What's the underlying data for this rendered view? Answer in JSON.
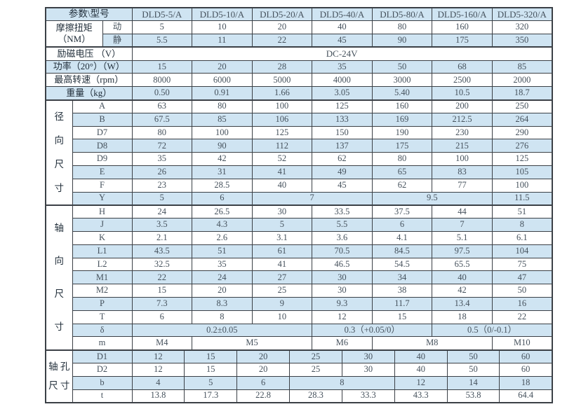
{
  "page": {
    "background": "#ffffff"
  },
  "table": {
    "colors": {
      "stripe_blue": "#cfe4f2",
      "row_white": "#ffffff",
      "border": "#3b4046",
      "label_text": "#1f2c38",
      "value_text": "#46525d"
    },
    "columns": {
      "label_widths": [
        38,
        43,
        42
      ],
      "data_area_width": 599,
      "subcols": 56
    },
    "section_labels": {
      "radial": "径向尺寸",
      "axial": "轴向尺寸",
      "shaft_hole": "轴孔尺寸"
    },
    "models": [
      "DLD5-5/A",
      "DLD5-10/A",
      "DLD5-20/A",
      "DLD5-40/A",
      "DLD5-80/A",
      "DLD5-160/A",
      "DLD5-320/A"
    ],
    "rows": [
      {
        "cells": [
          {
            "t": "参数\\型号",
            "cs": 3,
            "k": "corner"
          },
          {
            "t": "DLD5-5/A",
            "cs": 8,
            "k": "model"
          },
          {
            "t": "DLD5-10/A",
            "cs": 8,
            "k": "model"
          },
          {
            "t": "DLD5-20/A",
            "cs": 8,
            "k": "model"
          },
          {
            "t": "DLD5-40/A",
            "cs": 8,
            "k": "model"
          },
          {
            "t": "DLD5-80/A",
            "cs": 8,
            "k": "model"
          },
          {
            "t": "DLD5-160/A",
            "cs": 8,
            "k": "model"
          },
          {
            "t": "DLD5-320/A",
            "cs": 8,
            "k": "model"
          }
        ]
      },
      {
        "cells": [
          {
            "t": "摩擦扭矩\n（NM）",
            "cs": 2,
            "rs": 2,
            "k": "head",
            "w": true
          },
          {
            "t": "动",
            "cs": 1,
            "k": "sub"
          },
          {
            "t": "5",
            "cs": 8
          },
          {
            "t": "10",
            "cs": 8
          },
          {
            "t": "20",
            "cs": 8
          },
          {
            "t": "40",
            "cs": 8
          },
          {
            "t": "80",
            "cs": 8
          },
          {
            "t": "160",
            "cs": 8
          },
          {
            "t": "320",
            "cs": 8
          }
        ]
      },
      {
        "sep": true,
        "cells": [
          {
            "t": "静",
            "cs": 1,
            "k": "sub"
          },
          {
            "t": "5.5",
            "cs": 8
          },
          {
            "t": "11",
            "cs": 8
          },
          {
            "t": "22",
            "cs": 8
          },
          {
            "t": "45",
            "cs": 8
          },
          {
            "t": "90",
            "cs": 8
          },
          {
            "t": "175",
            "cs": 8
          },
          {
            "t": "350",
            "cs": 8
          }
        ]
      },
      {
        "cells": [
          {
            "t": "励磁电压 （V）",
            "cs": 3,
            "k": "head"
          },
          {
            "t": "DC-24V",
            "cs": 56,
            "k": "model"
          }
        ]
      },
      {
        "cells": [
          {
            "t": "功率（20°）（W）",
            "cs": 3,
            "k": "head"
          },
          {
            "t": "15",
            "cs": 8
          },
          {
            "t": "20",
            "cs": 8
          },
          {
            "t": "28",
            "cs": 8
          },
          {
            "t": "35",
            "cs": 8
          },
          {
            "t": "50",
            "cs": 8
          },
          {
            "t": "68",
            "cs": 8
          },
          {
            "t": "85",
            "cs": 8
          }
        ]
      },
      {
        "cells": [
          {
            "t": "最高转速（rpm）",
            "cs": 3,
            "k": "head"
          },
          {
            "t": "8000",
            "cs": 8
          },
          {
            "t": "6000",
            "cs": 8
          },
          {
            "t": "5000",
            "cs": 8
          },
          {
            "t": "4000",
            "cs": 8
          },
          {
            "t": "3000",
            "cs": 8
          },
          {
            "t": "2500",
            "cs": 8
          },
          {
            "t": "2000",
            "cs": 8
          }
        ]
      },
      {
        "sep": true,
        "cells": [
          {
            "t": "重量（kg）",
            "cs": 3,
            "k": "head"
          },
          {
            "t": "0.50",
            "cs": 8
          },
          {
            "t": "0.91",
            "cs": 8
          },
          {
            "t": "1.66",
            "cs": 8
          },
          {
            "t": "3.05",
            "cs": 8
          },
          {
            "t": "5.40",
            "cs": 8
          },
          {
            "t": "10.5",
            "cs": 8
          },
          {
            "t": "18.7",
            "cs": 8
          }
        ]
      },
      {
        "cells": [
          {
            "t": "径\n向\n尺\n寸",
            "cs": 1,
            "rs": 8,
            "k": "vl8",
            "w": true
          },
          {
            "t": "A",
            "cs": 2,
            "k": "sub"
          },
          {
            "t": "63",
            "cs": 8
          },
          {
            "t": "80",
            "cs": 8
          },
          {
            "t": "100",
            "cs": 8
          },
          {
            "t": "125",
            "cs": 8
          },
          {
            "t": "160",
            "cs": 8
          },
          {
            "t": "200",
            "cs": 8
          },
          {
            "t": "250",
            "cs": 8
          }
        ]
      },
      {
        "cells": [
          {
            "t": "B",
            "cs": 2,
            "k": "sub"
          },
          {
            "t": "67.5",
            "cs": 8
          },
          {
            "t": "85",
            "cs": 8
          },
          {
            "t": "106",
            "cs": 8
          },
          {
            "t": "133",
            "cs": 8
          },
          {
            "t": "169",
            "cs": 8
          },
          {
            "t": "212.5",
            "cs": 8
          },
          {
            "t": "264",
            "cs": 8
          }
        ]
      },
      {
        "cells": [
          {
            "t": "D7",
            "cs": 2,
            "k": "sub"
          },
          {
            "t": "80",
            "cs": 8
          },
          {
            "t": "100",
            "cs": 8
          },
          {
            "t": "125",
            "cs": 8
          },
          {
            "t": "150",
            "cs": 8
          },
          {
            "t": "190",
            "cs": 8
          },
          {
            "t": "230",
            "cs": 8
          },
          {
            "t": "290",
            "cs": 8
          }
        ]
      },
      {
        "cells": [
          {
            "t": "D8",
            "cs": 2,
            "k": "sub"
          },
          {
            "t": "72",
            "cs": 8
          },
          {
            "t": "90",
            "cs": 8
          },
          {
            "t": "112",
            "cs": 8
          },
          {
            "t": "137",
            "cs": 8
          },
          {
            "t": "175",
            "cs": 8
          },
          {
            "t": "215",
            "cs": 8
          },
          {
            "t": "276",
            "cs": 8
          }
        ]
      },
      {
        "cells": [
          {
            "t": "D9",
            "cs": 2,
            "k": "sub"
          },
          {
            "t": "35",
            "cs": 8
          },
          {
            "t": "42",
            "cs": 8
          },
          {
            "t": "52",
            "cs": 8
          },
          {
            "t": "62",
            "cs": 8
          },
          {
            "t": "80",
            "cs": 8
          },
          {
            "t": "100",
            "cs": 8
          },
          {
            "t": "125",
            "cs": 8
          }
        ]
      },
      {
        "cells": [
          {
            "t": "E",
            "cs": 2,
            "k": "sub"
          },
          {
            "t": "26",
            "cs": 8
          },
          {
            "t": "31",
            "cs": 8
          },
          {
            "t": "41",
            "cs": 8
          },
          {
            "t": "49",
            "cs": 8
          },
          {
            "t": "65",
            "cs": 8
          },
          {
            "t": "83",
            "cs": 8
          },
          {
            "t": "105",
            "cs": 8
          }
        ]
      },
      {
        "cells": [
          {
            "t": "F",
            "cs": 2,
            "k": "sub"
          },
          {
            "t": "23",
            "cs": 8
          },
          {
            "t": "28.5",
            "cs": 8
          },
          {
            "t": "40",
            "cs": 8
          },
          {
            "t": "45",
            "cs": 8
          },
          {
            "t": "62",
            "cs": 8
          },
          {
            "t": "77",
            "cs": 8
          },
          {
            "t": "100",
            "cs": 8
          }
        ]
      },
      {
        "sep": true,
        "cells": [
          {
            "t": "Y",
            "cs": 2,
            "k": "sub"
          },
          {
            "t": "5",
            "cs": 8
          },
          {
            "t": "6",
            "cs": 8
          },
          {
            "t": "7",
            "cs": 16
          },
          {
            "t": "9.5",
            "cs": 16
          },
          {
            "t": "11.5",
            "cs": 8
          }
        ]
      },
      {
        "cells": [
          {
            "t": "轴\n向\n尺\n寸",
            "cs": 1,
            "rs": 11,
            "k": "vl11",
            "w": true
          },
          {
            "t": "H",
            "cs": 2,
            "k": "sub"
          },
          {
            "t": "24",
            "cs": 8
          },
          {
            "t": "26.5",
            "cs": 8
          },
          {
            "t": "30",
            "cs": 8
          },
          {
            "t": "33.5",
            "cs": 8
          },
          {
            "t": "37.5",
            "cs": 8
          },
          {
            "t": "44",
            "cs": 8
          },
          {
            "t": "51",
            "cs": 8
          }
        ]
      },
      {
        "cells": [
          {
            "t": "J",
            "cs": 2,
            "k": "sub"
          },
          {
            "t": "3.5",
            "cs": 8
          },
          {
            "t": "4.3",
            "cs": 8
          },
          {
            "t": "5",
            "cs": 8
          },
          {
            "t": "5.5",
            "cs": 8
          },
          {
            "t": "6",
            "cs": 8
          },
          {
            "t": "7",
            "cs": 8
          },
          {
            "t": "8",
            "cs": 8
          }
        ]
      },
      {
        "cells": [
          {
            "t": "K",
            "cs": 2,
            "k": "sub"
          },
          {
            "t": "2.1",
            "cs": 8
          },
          {
            "t": "2.6",
            "cs": 8
          },
          {
            "t": "3.1",
            "cs": 8
          },
          {
            "t": "3.6",
            "cs": 8
          },
          {
            "t": "4.1",
            "cs": 8
          },
          {
            "t": "5.1",
            "cs": 8
          },
          {
            "t": "6.1",
            "cs": 8
          }
        ]
      },
      {
        "cells": [
          {
            "t": "L1",
            "cs": 2,
            "k": "sub"
          },
          {
            "t": "43.5",
            "cs": 8
          },
          {
            "t": "51",
            "cs": 8
          },
          {
            "t": "61",
            "cs": 8
          },
          {
            "t": "70.5",
            "cs": 8
          },
          {
            "t": "84.5",
            "cs": 8
          },
          {
            "t": "97.5",
            "cs": 8
          },
          {
            "t": "104",
            "cs": 8
          }
        ]
      },
      {
        "cells": [
          {
            "t": "L2",
            "cs": 2,
            "k": "sub"
          },
          {
            "t": "32.5",
            "cs": 8
          },
          {
            "t": "35",
            "cs": 8
          },
          {
            "t": "41",
            "cs": 8
          },
          {
            "t": "46.5",
            "cs": 8
          },
          {
            "t": "54.5",
            "cs": 8
          },
          {
            "t": "65.5",
            "cs": 8
          },
          {
            "t": "75",
            "cs": 8
          }
        ]
      },
      {
        "cells": [
          {
            "t": "M1",
            "cs": 2,
            "k": "sub"
          },
          {
            "t": "22",
            "cs": 8
          },
          {
            "t": "24",
            "cs": 8
          },
          {
            "t": "27",
            "cs": 8
          },
          {
            "t": "30",
            "cs": 8
          },
          {
            "t": "34",
            "cs": 8
          },
          {
            "t": "40",
            "cs": 8
          },
          {
            "t": "47",
            "cs": 8
          }
        ]
      },
      {
        "cells": [
          {
            "t": "M2",
            "cs": 2,
            "k": "sub"
          },
          {
            "t": "15",
            "cs": 8
          },
          {
            "t": "20",
            "cs": 8
          },
          {
            "t": "25",
            "cs": 8
          },
          {
            "t": "30",
            "cs": 8
          },
          {
            "t": "38",
            "cs": 8
          },
          {
            "t": "42",
            "cs": 8
          },
          {
            "t": "50",
            "cs": 8
          }
        ]
      },
      {
        "cells": [
          {
            "t": "P",
            "cs": 2,
            "k": "sub"
          },
          {
            "t": "7.3",
            "cs": 8
          },
          {
            "t": "8.3",
            "cs": 8
          },
          {
            "t": "9",
            "cs": 8
          },
          {
            "t": "9.3",
            "cs": 8
          },
          {
            "t": "11.7",
            "cs": 8
          },
          {
            "t": "13.4",
            "cs": 8
          },
          {
            "t": "16",
            "cs": 8
          }
        ]
      },
      {
        "cells": [
          {
            "t": "T",
            "cs": 2,
            "k": "sub"
          },
          {
            "t": "6",
            "cs": 8
          },
          {
            "t": "8",
            "cs": 8
          },
          {
            "t": "10",
            "cs": 8
          },
          {
            "t": "12",
            "cs": 8
          },
          {
            "t": "15",
            "cs": 8
          },
          {
            "t": "18",
            "cs": 8
          },
          {
            "t": "22",
            "cs": 8
          }
        ]
      },
      {
        "cells": [
          {
            "t": "δ",
            "cs": 2,
            "k": "sub"
          },
          {
            "t": "0.2±0.05",
            "cs": 24
          },
          {
            "t": "0.3（+0.05/0）",
            "cs": 16
          },
          {
            "t": "0.5（0/-0.1）",
            "cs": 16
          }
        ]
      },
      {
        "sep": true,
        "cells": [
          {
            "t": "m",
            "cs": 2,
            "k": "sub"
          },
          {
            "t": "M4",
            "cs": 8
          },
          {
            "t": "M5",
            "cs": 16
          },
          {
            "t": "M6",
            "cs": 8
          },
          {
            "t": "M8",
            "cs": 16
          },
          {
            "t": "M10",
            "cs": 8
          }
        ]
      },
      {
        "cells": [
          {
            "t": "轴 孔\n尺 寸",
            "cs": 1,
            "rs": 4,
            "k": "vl2",
            "w": true
          },
          {
            "t": "D1",
            "cs": 2,
            "k": "sub"
          },
          {
            "t": "12",
            "cs": 7
          },
          {
            "t": "15",
            "cs": 7
          },
          {
            "t": "20",
            "cs": 7
          },
          {
            "t": "25",
            "cs": 7
          },
          {
            "t": "30",
            "cs": 7
          },
          {
            "t": "40",
            "cs": 7
          },
          {
            "t": "50",
            "cs": 7
          },
          {
            "t": "60",
            "cs": 7
          }
        ]
      },
      {
        "cells": [
          {
            "t": "D2",
            "cs": 2,
            "k": "sub"
          },
          {
            "t": "12",
            "cs": 7
          },
          {
            "t": "15",
            "cs": 7
          },
          {
            "t": "20",
            "cs": 7
          },
          {
            "t": "25",
            "cs": 7
          },
          {
            "t": "30",
            "cs": 7
          },
          {
            "t": "40",
            "cs": 7
          },
          {
            "t": "50",
            "cs": 7
          },
          {
            "t": "60",
            "cs": 7
          }
        ]
      },
      {
        "cells": [
          {
            "t": "b",
            "cs": 2,
            "k": "sub"
          },
          {
            "t": "4",
            "cs": 7
          },
          {
            "t": "5",
            "cs": 7
          },
          {
            "t": "6",
            "cs": 7
          },
          {
            "t": "8",
            "cs": 14
          },
          {
            "t": "12",
            "cs": 7
          },
          {
            "t": "14",
            "cs": 7
          },
          {
            "t": "18",
            "cs": 7
          }
        ]
      },
      {
        "cells": [
          {
            "t": "t",
            "cs": 2,
            "k": "sub"
          },
          {
            "t": "13.8",
            "cs": 7
          },
          {
            "t": "17.3",
            "cs": 7
          },
          {
            "t": "22.8",
            "cs": 7
          },
          {
            "t": "28.3",
            "cs": 7
          },
          {
            "t": "33.3",
            "cs": 7
          },
          {
            "t": "43.3",
            "cs": 7
          },
          {
            "t": "53.8",
            "cs": 7
          },
          {
            "t": "64.4",
            "cs": 7
          }
        ]
      }
    ]
  }
}
